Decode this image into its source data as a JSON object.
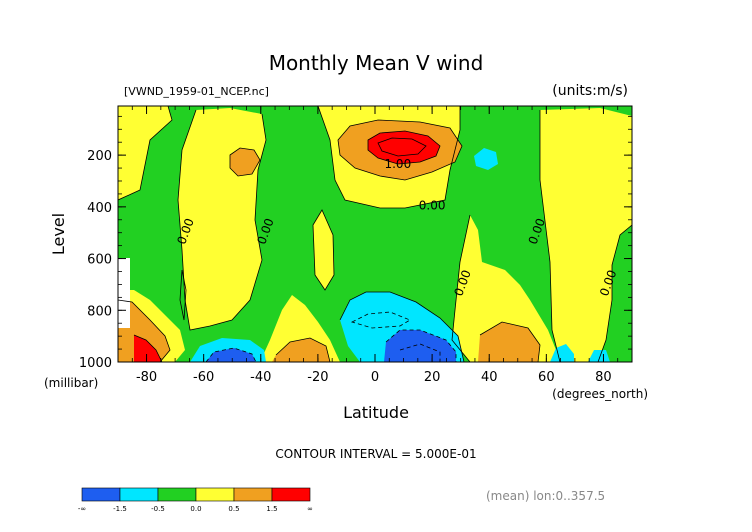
{
  "chart_data": {
    "type": "contour",
    "title": "Monthly Mean V wind",
    "file_label": "[VWND_1959-01_NCEP.nc]",
    "units_label": "(units:m/s)",
    "xlabel": "Latitude",
    "x_units": "(degrees_north)",
    "ylabel": "Level",
    "y_units": "(millibar)",
    "x_ticks": [
      "-80",
      "-60",
      "-40",
      "-20",
      "0",
      "20",
      "40",
      "60",
      "80"
    ],
    "x_tick_values": [
      -80,
      -60,
      -40,
      -20,
      0,
      20,
      40,
      60,
      80
    ],
    "y_ticks": [
      "200",
      "400",
      "600",
      "800",
      "1000"
    ],
    "y_tick_values": [
      200,
      400,
      600,
      800,
      1000
    ],
    "xlim": [
      -90,
      90
    ],
    "ylim": [
      1000,
      10
    ],
    "contour_interval_text": "CONTOUR INTERVAL = 5.000E-01",
    "contour_labels": [
      {
        "text": "0.00",
        "lat": -65,
        "level": 500
      },
      {
        "text": "0.00",
        "lat": -37,
        "level": 500
      },
      {
        "text": "1.00",
        "lat": 8,
        "level": 250
      },
      {
        "text": "0.00",
        "lat": 20,
        "level": 410
      },
      {
        "text": "0.00",
        "lat": 32,
        "level": 700
      },
      {
        "text": "0.00",
        "lat": 58,
        "level": 500
      },
      {
        "text": "0.00",
        "lat": 83,
        "level": 700
      }
    ],
    "colorbar": {
      "labels": [
        "-∞",
        "-1.5",
        "-0.5",
        "0.0",
        "0.5",
        "1.5",
        "∞"
      ],
      "colors": [
        "#1e5ef0",
        "#00e6ff",
        "#22d022",
        "#ffff33",
        "#f0a020",
        "#ff0000"
      ]
    },
    "footer_text": "(mean) lon:0..357.5"
  }
}
